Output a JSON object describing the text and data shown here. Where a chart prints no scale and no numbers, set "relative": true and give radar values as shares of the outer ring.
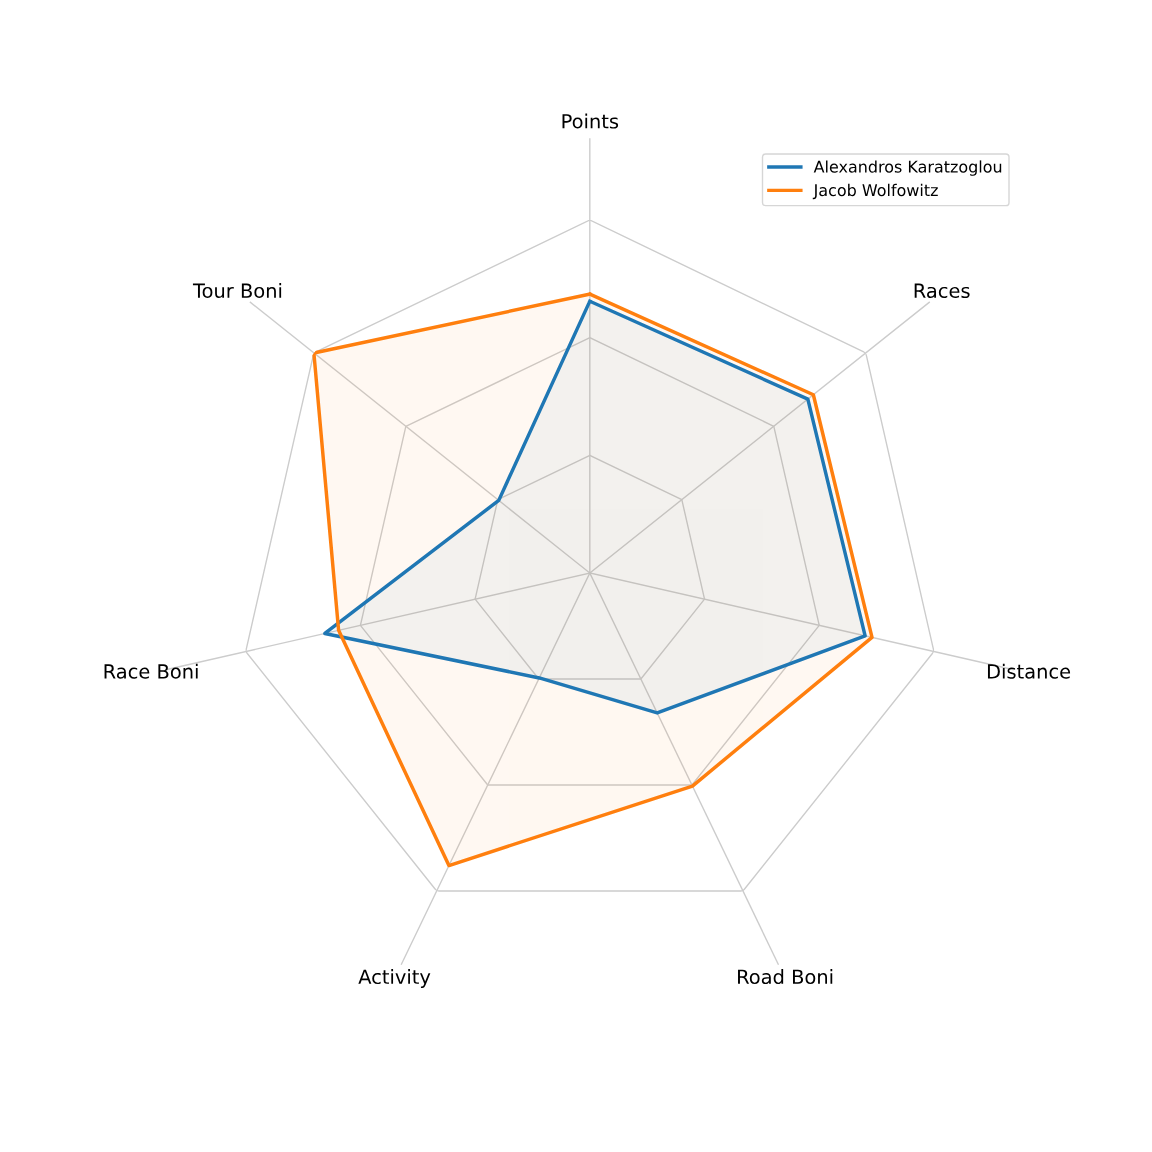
{
  "chart_data": {
    "type": "radar",
    "relative": true,
    "grid": true,
    "legend": "top right",
    "categories": [
      "Points",
      "Races",
      "Distance",
      "Road Boni",
      "Activity",
      "Race Boni",
      "Tour Boni"
    ],
    "series": [
      {
        "name": "Alexandros Karatzoglou",
        "color": "#1f77b4",
        "values": [
          0.77,
          0.79,
          0.8,
          0.44,
          0.33,
          0.77,
          0.33
        ]
      },
      {
        "name": "Jacob Wolfowitz",
        "color": "#ff7f0e",
        "values": [
          0.79,
          0.81,
          0.82,
          0.67,
          0.92,
          0.73,
          1.0
        ]
      }
    ]
  }
}
